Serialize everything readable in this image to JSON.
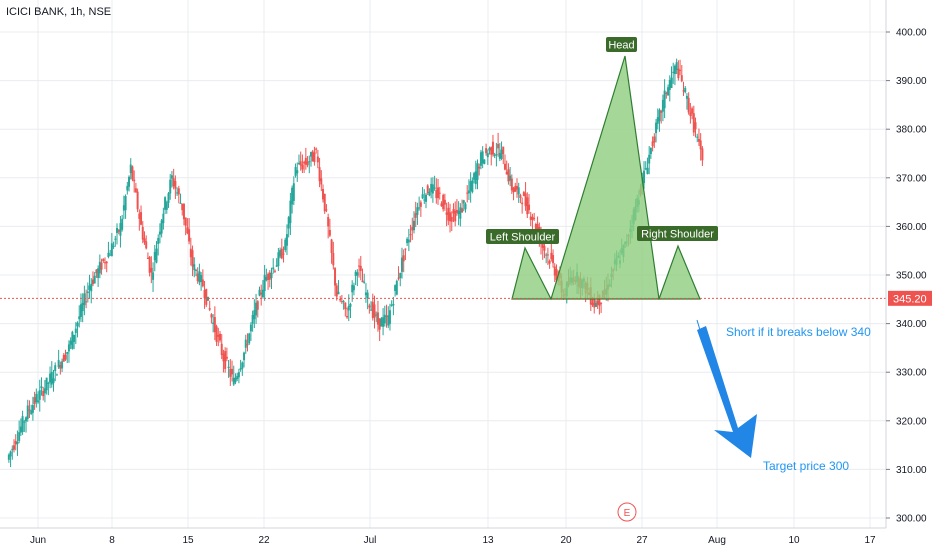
{
  "header": {
    "title": "ICICI BANK, 1h, NSE"
  },
  "colors": {
    "up": "#26a69a",
    "down": "#ef5350",
    "grid": "#e9ecef",
    "pattern_fill": "#8fce7e",
    "pattern_stroke": "#2f7d32",
    "label_bg": "#3b6b2a",
    "arrow": "#2186e5",
    "price_line": "#ef5350",
    "price_badge": "#ef5350"
  },
  "chart_data": {
    "type": "candlestick",
    "symbol": "ICICI BANK",
    "interval": "1h",
    "exchange": "NSE",
    "x_ticks": [
      "Jun",
      "8",
      "15",
      "22",
      "Jul",
      "13",
      "20",
      "27",
      "Aug",
      "10",
      "17"
    ],
    "y_ticks": [
      "400.00",
      "390.00",
      "380.00",
      "370.00",
      "360.00",
      "350.00",
      "340.00",
      "330.00",
      "320.00",
      "310.00",
      "300.00"
    ],
    "ylim": [
      298,
      406
    ],
    "last_price": "345.20",
    "close_path": [
      [
        0,
        312
      ],
      [
        2,
        322
      ],
      [
        4,
        328
      ],
      [
        6,
        335
      ],
      [
        8,
        348
      ],
      [
        10,
        355
      ],
      [
        11,
        360
      ],
      [
        12,
        372
      ],
      [
        13,
        360
      ],
      [
        14,
        350
      ],
      [
        15,
        362
      ],
      [
        16,
        370
      ],
      [
        17,
        364
      ],
      [
        18,
        352
      ],
      [
        19,
        348
      ],
      [
        20,
        340
      ],
      [
        21,
        333
      ],
      [
        22,
        328
      ],
      [
        23,
        334
      ],
      [
        24,
        342
      ],
      [
        25,
        349
      ],
      [
        26,
        352
      ],
      [
        27,
        356
      ],
      [
        28,
        372
      ],
      [
        29,
        373
      ],
      [
        30,
        375
      ],
      [
        31,
        362
      ],
      [
        32,
        346
      ],
      [
        33,
        342
      ],
      [
        34,
        352
      ],
      [
        35,
        345
      ],
      [
        36,
        340
      ],
      [
        37,
        341
      ],
      [
        38,
        350
      ],
      [
        39,
        358
      ],
      [
        40,
        365
      ],
      [
        41,
        368
      ],
      [
        42,
        366
      ],
      [
        43,
        362
      ],
      [
        44,
        363
      ],
      [
        45,
        368
      ],
      [
        46,
        374
      ],
      [
        47,
        376
      ],
      [
        48,
        375
      ],
      [
        49,
        368
      ],
      [
        50,
        366
      ],
      [
        51,
        362
      ],
      [
        52,
        356
      ],
      [
        53,
        352
      ],
      [
        54,
        346
      ],
      [
        55,
        350
      ],
      [
        56,
        348
      ],
      [
        57,
        344
      ],
      [
        58,
        346
      ],
      [
        59,
        352
      ],
      [
        60,
        356
      ],
      [
        61,
        364
      ],
      [
        62,
        372
      ],
      [
        63,
        380
      ],
      [
        64,
        388
      ],
      [
        65,
        393
      ],
      [
        66,
        386
      ],
      [
        67,
        378
      ],
      [
        68,
        368
      ],
      [
        69,
        358
      ],
      [
        70,
        350
      ],
      [
        71,
        346
      ],
      [
        72,
        352
      ],
      [
        73,
        357
      ],
      [
        74,
        352
      ],
      [
        75,
        348
      ],
      [
        75.3,
        345.2
      ]
    ],
    "annotations": {
      "head_label": "Head",
      "left_shoulder_label": "Left Shoulder",
      "right_shoulder_label": "Right Shoulder",
      "short_text": "Short if it breaks below 340",
      "target_text": "Target price 300",
      "event_marker": "E"
    },
    "pattern_points": {
      "left_shoulder": [
        [
          52.5,
          346
        ],
        [
          54.5,
          355
        ],
        [
          56.5,
          346
        ]
      ],
      "head": [
        [
          58.5,
          346
        ],
        [
          64.8,
          395
        ],
        [
          70.5,
          346
        ]
      ],
      "right_shoulder": [
        [
          70.5,
          346
        ],
        [
          73,
          355
        ],
        [
          75.5,
          346
        ]
      ]
    },
    "forecast_arrow": {
      "from": [
        75.5,
        341
      ],
      "to": [
        81,
        310
      ]
    }
  }
}
